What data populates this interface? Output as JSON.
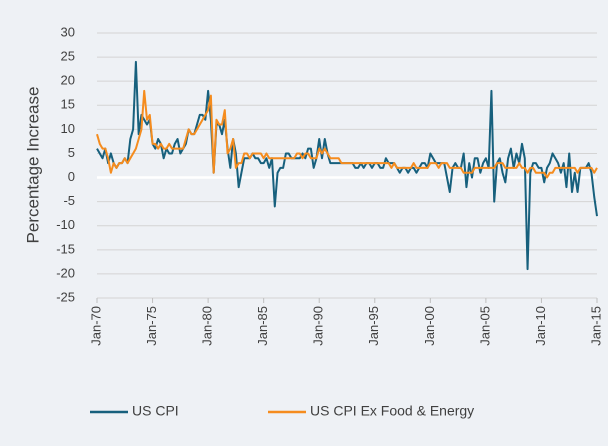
{
  "chart_data": {
    "type": "line",
    "y_label": "Percentage Increase",
    "xlim": [
      1970,
      2015
    ],
    "xticks": [
      {
        "value": 1970,
        "label": "Jan-70"
      },
      {
        "value": 1975,
        "label": "Jan-75"
      },
      {
        "value": 1980,
        "label": "Jan-80"
      },
      {
        "value": 1985,
        "label": "Jan-85"
      },
      {
        "value": 1990,
        "label": "Jan-90"
      },
      {
        "value": 1995,
        "label": "Jan-95"
      },
      {
        "value": 2000,
        "label": "Jan-00"
      },
      {
        "value": 2005,
        "label": "Jan-05"
      },
      {
        "value": 2010,
        "label": "Jan-10"
      },
      {
        "value": 2015,
        "label": "Jan-15"
      }
    ],
    "ylim": [
      -25,
      30
    ],
    "yticks": [
      -25,
      -20,
      -15,
      -10,
      -5,
      0,
      5,
      10,
      15,
      20,
      25,
      30
    ],
    "grid": true,
    "legend": "bottom",
    "x": [
      1970,
      1970.25,
      1970.5,
      1970.75,
      1971,
      1971.25,
      1971.5,
      1971.75,
      1972,
      1972.25,
      1972.5,
      1972.75,
      1973,
      1973.25,
      1973.5,
      1973.75,
      1974,
      1974.25,
      1974.5,
      1974.75,
      1975,
      1975.25,
      1975.5,
      1975.75,
      1976,
      1976.25,
      1976.5,
      1976.75,
      1977,
      1977.25,
      1977.5,
      1977.75,
      1978,
      1978.25,
      1978.5,
      1978.75,
      1979,
      1979.25,
      1979.5,
      1979.75,
      1980,
      1980.25,
      1980.5,
      1980.75,
      1981,
      1981.25,
      1981.5,
      1981.75,
      1982,
      1982.25,
      1982.5,
      1982.75,
      1983,
      1983.25,
      1983.5,
      1983.75,
      1984,
      1984.25,
      1984.5,
      1984.75,
      1985,
      1985.25,
      1985.5,
      1985.75,
      1986,
      1986.25,
      1986.5,
      1986.75,
      1987,
      1987.25,
      1987.5,
      1987.75,
      1988,
      1988.25,
      1988.5,
      1988.75,
      1989,
      1989.25,
      1989.5,
      1989.75,
      1990,
      1990.25,
      1990.5,
      1990.75,
      1991,
      1991.25,
      1991.5,
      1991.75,
      1992,
      1992.25,
      1992.5,
      1992.75,
      1993,
      1993.25,
      1993.5,
      1993.75,
      1994,
      1994.25,
      1994.5,
      1994.75,
      1995,
      1995.25,
      1995.5,
      1995.75,
      1996,
      1996.25,
      1996.5,
      1996.75,
      1997,
      1997.25,
      1997.5,
      1997.75,
      1998,
      1998.25,
      1998.5,
      1998.75,
      1999,
      1999.25,
      1999.5,
      1999.75,
      2000,
      2000.25,
      2000.5,
      2000.75,
      2001,
      2001.25,
      2001.5,
      2001.75,
      2002,
      2002.25,
      2002.5,
      2002.75,
      2003,
      2003.25,
      2003.5,
      2003.75,
      2004,
      2004.25,
      2004.5,
      2004.75,
      2005,
      2005.25,
      2005.5,
      2005.75,
      2006,
      2006.25,
      2006.5,
      2006.75,
      2007,
      2007.25,
      2007.5,
      2007.75,
      2008,
      2008.25,
      2008.5,
      2008.75,
      2009,
      2009.25,
      2009.5,
      2009.75,
      2010,
      2010.25,
      2010.5,
      2010.75,
      2011,
      2011.25,
      2011.5,
      2011.75,
      2012,
      2012.25,
      2012.5,
      2012.75,
      2013,
      2013.25,
      2013.5,
      2013.75,
      2014,
      2014.25,
      2014.5,
      2014.75,
      2015
    ],
    "series": [
      {
        "name": "US CPI",
        "color": "#17607d",
        "values": [
          6,
          5,
          4,
          6,
          3,
          5,
          3,
          2,
          3,
          3,
          4,
          3,
          8,
          10,
          24,
          9,
          13,
          12,
          11,
          12,
          7,
          6,
          8,
          7,
          4,
          6,
          5,
          5,
          7,
          8,
          5,
          6,
          7,
          10,
          9,
          9,
          11,
          13,
          13,
          12,
          18,
          12,
          1,
          11,
          11,
          9,
          12,
          6,
          2,
          8,
          5,
          -2,
          1,
          4,
          4,
          4,
          5,
          4,
          4,
          3,
          3,
          4,
          2,
          4,
          -6,
          1,
          2,
          2,
          5,
          5,
          4,
          4,
          4,
          4,
          5,
          4,
          6,
          6,
          2,
          4,
          8,
          4,
          8,
          5,
          3,
          3,
          3,
          3,
          3,
          3,
          3,
          3,
          3,
          2,
          2,
          3,
          2,
          3,
          3,
          2,
          3,
          3,
          2,
          2,
          4,
          3,
          3,
          3,
          2,
          1,
          2,
          2,
          1,
          2,
          2,
          1,
          2,
          3,
          3,
          2,
          5,
          4,
          3,
          3,
          3,
          3,
          0,
          -3,
          2,
          3,
          2,
          2,
          5,
          -2,
          3,
          0,
          4,
          4,
          1,
          3,
          4,
          2,
          18,
          -5,
          3,
          4,
          1,
          -1,
          4,
          6,
          2,
          5,
          3,
          7,
          4,
          -19,
          1,
          3,
          3,
          2,
          2,
          -1,
          2,
          3,
          5,
          4,
          3,
          1,
          3,
          -2,
          5,
          -3,
          1,
          -3,
          2,
          2,
          2,
          3,
          1,
          -4,
          -8
        ]
      },
      {
        "name": "US CPI Ex Food & Energy",
        "color": "#f58c1e",
        "values": [
          9,
          7,
          6,
          6,
          4,
          1,
          3,
          2,
          3,
          3,
          4,
          3,
          4,
          5,
          6,
          8,
          10,
          18,
          12,
          13,
          7,
          7,
          6,
          7,
          6,
          6,
          7,
          6,
          6,
          6,
          6,
          6,
          8,
          10,
          9,
          9,
          10,
          11,
          12,
          13,
          14,
          17,
          1,
          12,
          11,
          11,
          14,
          5,
          6,
          8,
          2,
          3,
          3,
          5,
          5,
          4,
          5,
          5,
          5,
          5,
          4,
          5,
          4,
          4,
          4,
          4,
          4,
          4,
          4,
          4,
          4,
          4,
          5,
          5,
          4,
          5,
          5,
          4,
          4,
          4,
          6,
          5,
          6,
          5,
          4,
          4,
          4,
          4,
          3,
          3,
          3,
          3,
          3,
          3,
          3,
          3,
          3,
          3,
          3,
          3,
          3,
          3,
          3,
          3,
          3,
          3,
          2,
          3,
          2,
          2,
          2,
          2,
          2,
          2,
          3,
          2,
          2,
          2,
          2,
          2,
          3,
          3,
          3,
          2,
          3,
          3,
          3,
          2,
          2,
          2,
          2,
          2,
          1,
          1,
          1,
          1,
          2,
          2,
          2,
          2,
          2,
          2,
          2,
          2,
          3,
          3,
          3,
          2,
          2,
          2,
          2,
          2,
          3,
          2,
          2,
          1,
          2,
          2,
          1,
          1,
          1,
          1,
          0,
          1,
          1,
          2,
          2,
          2,
          2,
          2,
          2,
          2,
          2,
          1,
          2,
          2,
          2,
          2,
          2,
          1,
          2
        ]
      }
    ]
  }
}
